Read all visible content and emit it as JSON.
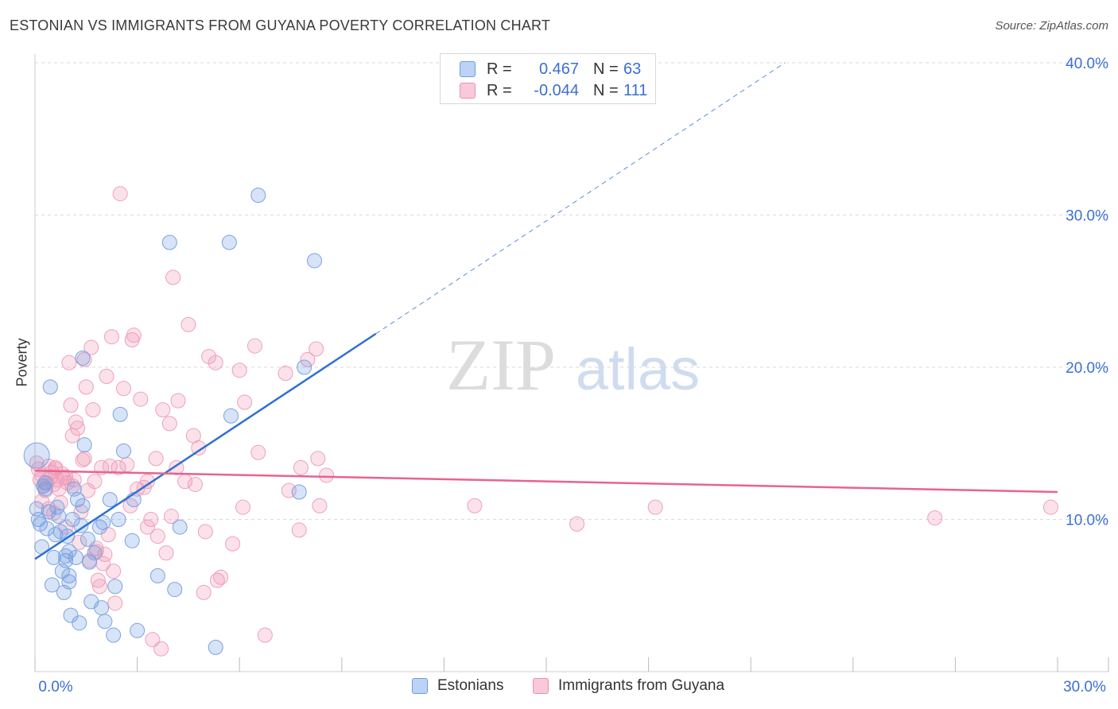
{
  "title": "ESTONIAN VS IMMIGRANTS FROM GUYANA POVERTY CORRELATION CHART",
  "source": "Source: ZipAtlas.com",
  "watermark": {
    "zip": "ZIP",
    "atlas": "atlas"
  },
  "legend": {
    "rows": [
      {
        "r_label": "R =",
        "r_value": "0.467",
        "n_label": "N =",
        "n_value": "63"
      },
      {
        "r_label": "R =",
        "r_value": "-0.044",
        "n_label": "N =",
        "n_value": "111"
      }
    ]
  },
  "chart_data": {
    "type": "scatter",
    "title": "ESTONIAN VS IMMIGRANTS FROM GUYANA POVERTY CORRELATION CHART",
    "xlabel": "",
    "ylabel": "Poverty",
    "xlim": [
      0,
      30
    ],
    "ylim": [
      0,
      40
    ],
    "x_ticks": [
      {
        "value": 0,
        "label": "0.0%"
      },
      {
        "value": 30,
        "label": "30.0%"
      }
    ],
    "y_ticks": [
      {
        "value": 10,
        "label": "10.0%"
      },
      {
        "value": 20,
        "label": "20.0%"
      },
      {
        "value": 30,
        "label": "30.0%"
      },
      {
        "value": 40,
        "label": "40.0%"
      }
    ],
    "colors": {
      "estonians": "#5b8fe0",
      "guyana": "#ee7fa3",
      "blue_line": "#3070d0",
      "pink_line": "#e8638f",
      "tick_label": "#3b6fd0"
    },
    "series": [
      {
        "name": "Estonians",
        "r": 0.467,
        "n": 63,
        "trend": {
          "x0": 0,
          "y0": 7.4,
          "x1": 10,
          "y1": 22.2,
          "dash_x1": 22,
          "dash_y1": 40
        },
        "points": [
          [
            0.05,
            14.2
          ],
          [
            0.05,
            10.7
          ],
          [
            0.1,
            10.0
          ],
          [
            0.15,
            9.7
          ],
          [
            0.2,
            8.2
          ],
          [
            0.3,
            12.4
          ],
          [
            0.35,
            9.4
          ],
          [
            0.4,
            10.5
          ],
          [
            0.45,
            18.7
          ],
          [
            0.5,
            5.7
          ],
          [
            0.55,
            7.5
          ],
          [
            0.6,
            9.0
          ],
          [
            0.65,
            10.8
          ],
          [
            0.7,
            10.2
          ],
          [
            0.8,
            6.6
          ],
          [
            0.85,
            5.2
          ],
          [
            0.9,
            7.6
          ],
          [
            0.95,
            8.9
          ],
          [
            1.0,
            6.3
          ],
          [
            1.0,
            7.9
          ],
          [
            1.05,
            3.7
          ],
          [
            1.1,
            10.0
          ],
          [
            1.15,
            12.0
          ],
          [
            1.2,
            7.5
          ],
          [
            1.25,
            11.3
          ],
          [
            1.3,
            3.2
          ],
          [
            1.35,
            9.6
          ],
          [
            1.4,
            10.9
          ],
          [
            1.4,
            20.6
          ],
          [
            1.45,
            14.9
          ],
          [
            1.55,
            8.7
          ],
          [
            1.6,
            7.2
          ],
          [
            1.65,
            4.6
          ],
          [
            1.75,
            7.8
          ],
          [
            1.9,
            9.5
          ],
          [
            1.95,
            4.2
          ],
          [
            2.0,
            9.8
          ],
          [
            2.05,
            3.3
          ],
          [
            2.2,
            11.3
          ],
          [
            2.3,
            2.4
          ],
          [
            2.35,
            5.6
          ],
          [
            2.45,
            10.0
          ],
          [
            2.5,
            16.9
          ],
          [
            2.6,
            14.5
          ],
          [
            2.85,
            8.6
          ],
          [
            2.9,
            11.3
          ],
          [
            3.0,
            2.7
          ],
          [
            3.6,
            6.3
          ],
          [
            3.95,
            28.2
          ],
          [
            4.1,
            5.4
          ],
          [
            4.25,
            9.5
          ],
          [
            5.3,
            1.6
          ],
          [
            5.7,
            28.2
          ],
          [
            5.75,
            16.8
          ],
          [
            6.55,
            31.3
          ],
          [
            7.75,
            11.8
          ],
          [
            7.9,
            20.0
          ],
          [
            8.2,
            27.0
          ],
          [
            0.25,
            12.2
          ],
          [
            0.3,
            12.0
          ],
          [
            1.0,
            5.9
          ],
          [
            0.9,
            7.3
          ],
          [
            0.75,
            9.2
          ]
        ]
      },
      {
        "name": "Immigrants from Guyana",
        "r": -0.044,
        "n": 111,
        "trend": {
          "x0": 0,
          "y0": 13.2,
          "x1": 30,
          "y1": 11.8
        },
        "points": [
          [
            0.05,
            13.7
          ],
          [
            0.1,
            13.3
          ],
          [
            0.15,
            12.6
          ],
          [
            0.2,
            12.9
          ],
          [
            0.25,
            12.2
          ],
          [
            0.3,
            11.9
          ],
          [
            0.35,
            12.4
          ],
          [
            0.4,
            10.7
          ],
          [
            0.45,
            12.8
          ],
          [
            0.5,
            13.1
          ],
          [
            0.55,
            12.3
          ],
          [
            0.6,
            13.4
          ],
          [
            0.65,
            12.6
          ],
          [
            0.7,
            12.0
          ],
          [
            0.75,
            11.1
          ],
          [
            0.8,
            13.0
          ],
          [
            0.85,
            12.7
          ],
          [
            0.9,
            9.5
          ],
          [
            0.95,
            12.4
          ],
          [
            1.0,
            20.3
          ],
          [
            1.05,
            17.5
          ],
          [
            1.1,
            15.5
          ],
          [
            1.15,
            12.6
          ],
          [
            1.2,
            16.4
          ],
          [
            1.25,
            16.0
          ],
          [
            1.3,
            8.5
          ],
          [
            1.35,
            10.5
          ],
          [
            1.4,
            13.9
          ],
          [
            1.45,
            20.5
          ],
          [
            1.5,
            18.7
          ],
          [
            1.55,
            11.9
          ],
          [
            1.6,
            7.3
          ],
          [
            1.65,
            21.3
          ],
          [
            1.7,
            17.2
          ],
          [
            1.75,
            12.5
          ],
          [
            1.8,
            8.1
          ],
          [
            1.85,
            6.0
          ],
          [
            1.9,
            5.6
          ],
          [
            1.95,
            13.4
          ],
          [
            2.05,
            7.7
          ],
          [
            2.1,
            19.4
          ],
          [
            2.15,
            9.0
          ],
          [
            2.2,
            13.5
          ],
          [
            2.25,
            22.0
          ],
          [
            2.3,
            6.6
          ],
          [
            2.35,
            4.5
          ],
          [
            2.45,
            13.4
          ],
          [
            2.5,
            31.4
          ],
          [
            2.6,
            18.6
          ],
          [
            2.7,
            13.6
          ],
          [
            2.8,
            10.9
          ],
          [
            2.85,
            21.8
          ],
          [
            2.9,
            22.1
          ],
          [
            3.0,
            12.0
          ],
          [
            3.1,
            17.9
          ],
          [
            3.2,
            12.1
          ],
          [
            3.3,
            12.5
          ],
          [
            3.4,
            10.0
          ],
          [
            3.45,
            2.1
          ],
          [
            3.55,
            14.0
          ],
          [
            3.6,
            8.9
          ],
          [
            3.7,
            1.5
          ],
          [
            3.75,
            17.2
          ],
          [
            3.85,
            7.8
          ],
          [
            3.95,
            16.3
          ],
          [
            4.05,
            25.9
          ],
          [
            4.15,
            13.4
          ],
          [
            4.2,
            17.8
          ],
          [
            4.4,
            12.5
          ],
          [
            4.5,
            22.8
          ],
          [
            4.65,
            15.5
          ],
          [
            4.7,
            12.3
          ],
          [
            4.8,
            14.7
          ],
          [
            4.95,
            5.2
          ],
          [
            5.0,
            9.2
          ],
          [
            5.1,
            20.7
          ],
          [
            5.3,
            20.3
          ],
          [
            5.35,
            6.0
          ],
          [
            5.45,
            6.2
          ],
          [
            5.8,
            8.4
          ],
          [
            6.0,
            19.8
          ],
          [
            6.1,
            10.8
          ],
          [
            6.15,
            17.7
          ],
          [
            6.45,
            21.4
          ],
          [
            6.55,
            14.4
          ],
          [
            6.75,
            2.4
          ],
          [
            7.35,
            19.6
          ],
          [
            7.45,
            11.9
          ],
          [
            7.75,
            9.3
          ],
          [
            7.8,
            13.4
          ],
          [
            8.0,
            20.5
          ],
          [
            8.25,
            21.2
          ],
          [
            8.3,
            14.0
          ],
          [
            8.35,
            10.9
          ],
          [
            8.55,
            12.9
          ],
          [
            12.9,
            10.9
          ],
          [
            15.9,
            9.7
          ],
          [
            18.2,
            10.8
          ],
          [
            26.4,
            10.1
          ],
          [
            29.8,
            10.8
          ],
          [
            0.2,
            11.2
          ],
          [
            0.6,
            13.3
          ],
          [
            0.9,
            12.8
          ],
          [
            1.45,
            14.0
          ],
          [
            2.0,
            7.1
          ],
          [
            3.3,
            9.5
          ],
          [
            4.0,
            10.2
          ],
          [
            0.55,
            10.4
          ],
          [
            0.4,
            13.5
          ],
          [
            1.1,
            12.2
          ],
          [
            1.8,
            7.9
          ]
        ]
      }
    ]
  },
  "bottom_legend": {
    "series1": "Estonians",
    "series2": "Immigrants from Guyana"
  }
}
